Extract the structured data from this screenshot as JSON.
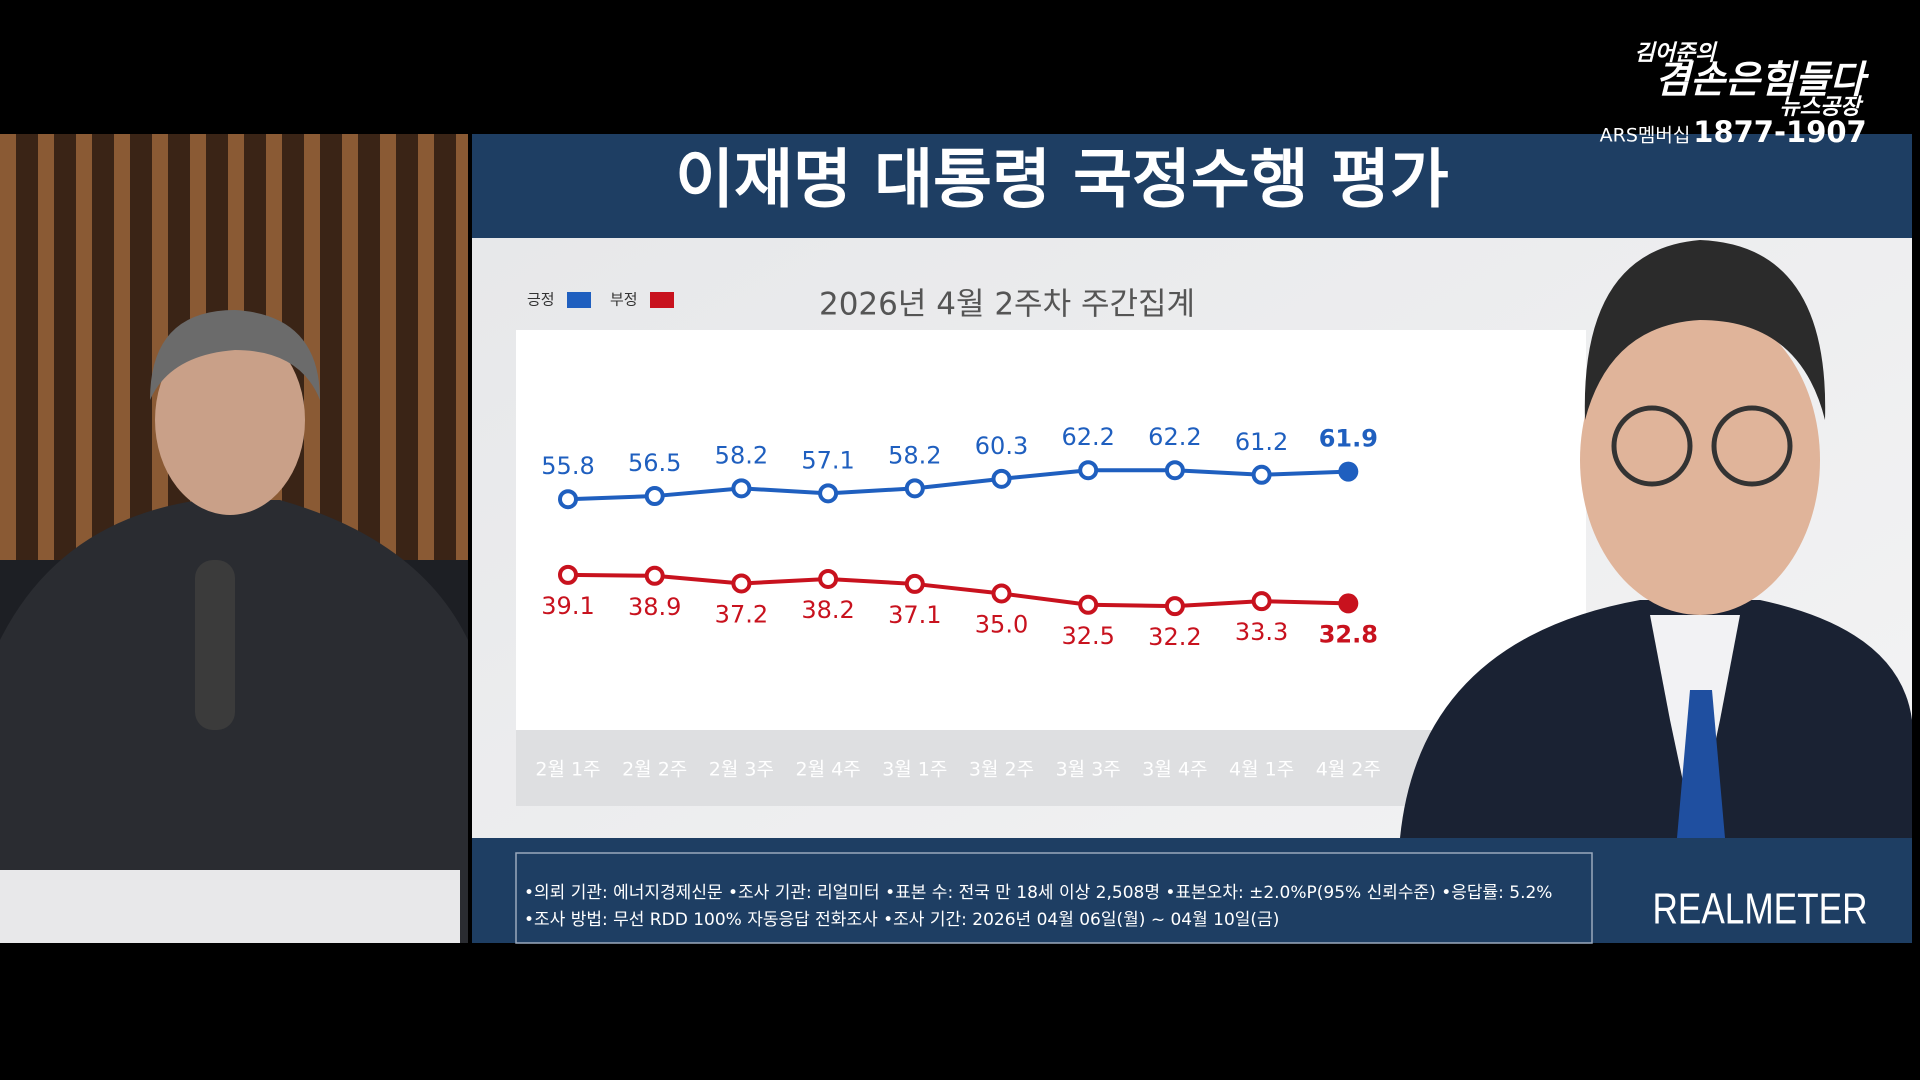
{
  "chart_data": {
    "type": "line",
    "title": "이재명 대통령 국정수행 평가",
    "subtitle": "2026년 4월 2주차 주간집계",
    "categories": [
      "2월 1주",
      "2월 2주",
      "2월 3주",
      "2월 4주",
      "3월 1주",
      "3월 2주",
      "3월 3주",
      "3월 4주",
      "4월 1주",
      "4월 2주"
    ],
    "series": [
      {
        "name": "긍정",
        "color": "#1f5fbf",
        "values": [
          55.8,
          56.5,
          58.2,
          57.1,
          58.2,
          60.3,
          62.2,
          62.2,
          61.2,
          61.9
        ],
        "value_labels": [
          "55.8",
          "56.5",
          "58.2",
          "57.1",
          "58.2",
          "60.3",
          "62.2",
          "62.2",
          "61.2",
          "61.9"
        ]
      },
      {
        "name": "부정",
        "color": "#c8121e",
        "values": [
          39.1,
          38.9,
          37.2,
          38.2,
          37.1,
          35.0,
          32.5,
          32.2,
          33.3,
          32.8
        ],
        "value_labels": [
          "39.1",
          "38.9",
          "37.2",
          "38.2",
          "37.1",
          "35.0",
          "32.5",
          "32.2",
          "33.3",
          "32.8"
        ]
      }
    ],
    "ylim": [
      0,
      100
    ],
    "legend": "top-left"
  },
  "footer": {
    "line1": "•의뢰 기관: 에너지경제신문 •조사 기관: 리얼미터 •표본 수: 전국 만 18세 이상 2,508명 •표본오차: ±2.0%P(95% 신뢰수준) •응답률: 5.2%",
    "line2": "•조사 방법: 무선 RDD 100% 자동응답 전화조사 •조사 기간: 2026년 04월 06일(월) ~ 04월 10일(금)",
    "brand": "REALMETER"
  },
  "logo": {
    "line1": "김어준의",
    "line2": "겸손은힘들다",
    "line3": "뉴스공장",
    "ars": "ARS멤버십",
    "phone": "1877-1907"
  }
}
